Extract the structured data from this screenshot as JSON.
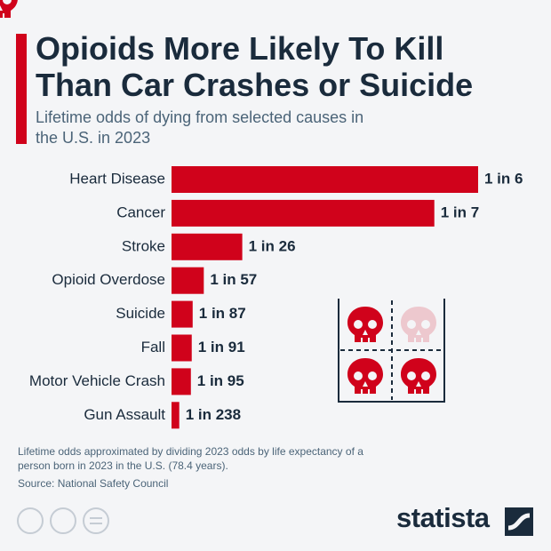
{
  "chart_data": {
    "type": "bar",
    "title": "Opioids More Likely To Kill Than Car Crashes or Suicide",
    "subtitle": "Lifetime odds of dying from selected causes in the U.S. in 2023",
    "categories": [
      "Heart Disease",
      "Cancer",
      "Stroke",
      "Opioid Overdose",
      "Suicide",
      "Fall",
      "Motor Vehicle Crash",
      "Gun Assault"
    ],
    "values": [
      6,
      7,
      26,
      57,
      87,
      91,
      95,
      238
    ],
    "value_labels": [
      "1 in 6",
      "1 in 7",
      "1 in 26",
      "1 in 57",
      "1 in 87",
      "1 in 91",
      "1 in 95",
      "1 in 238"
    ],
    "color": "#d0021b"
  },
  "footer": {
    "note": "Lifetime odds approximated by dividing 2023 odds by life expectancy of a person born in 2023 in the U.S. (78.4 years).",
    "source": "Source: National Safety Council",
    "brand": "statista"
  }
}
